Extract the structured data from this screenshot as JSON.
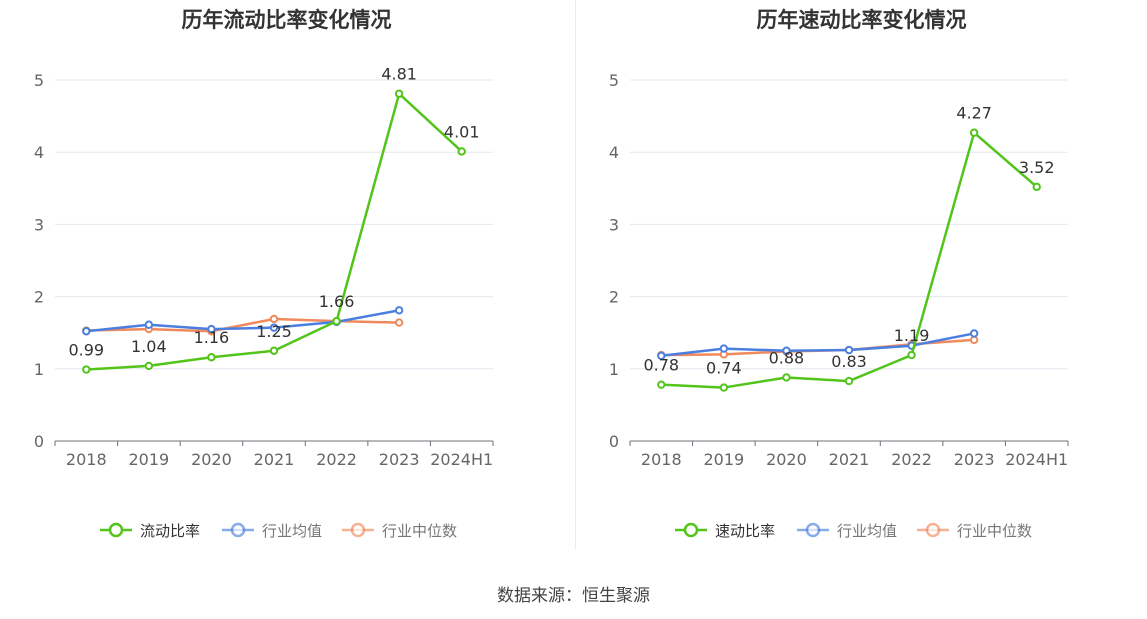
{
  "charts": [
    {
      "title": "历年流动比率变化情况",
      "chart_data": {
        "type": "line",
        "title": "历年流动比率变化情况",
        "categories": [
          "2018",
          "2019",
          "2020",
          "2021",
          "2022",
          "2023",
          "2024H1"
        ],
        "ylim": [
          0,
          5
        ],
        "yticks": [
          0,
          1,
          2,
          3,
          4,
          5
        ],
        "grid": true,
        "legend_position": "bottom",
        "series": [
          {
            "name": "流动比率",
            "color": "#52c41a",
            "labeled": true,
            "values": [
              0.99,
              1.04,
              1.16,
              1.25,
              1.66,
              4.81,
              4.01
            ],
            "labels": [
              "0.99",
              "1.04",
              "1.16",
              "1.25",
              "1.66",
              "4.81",
              "4.01"
            ]
          },
          {
            "name": "行业均值",
            "color": "#4a7fe0",
            "labeled": false,
            "values": [
              1.52,
              1.61,
              1.55,
              1.57,
              1.65,
              1.81,
              null
            ]
          },
          {
            "name": "行业中位数",
            "color": "#f08a5d",
            "labeled": false,
            "values": [
              1.53,
              1.55,
              1.52,
              1.69,
              1.66,
              1.64,
              null
            ]
          }
        ]
      }
    },
    {
      "title": "历年速动比率变化情况",
      "chart_data": {
        "type": "line",
        "title": "历年速动比率变化情况",
        "categories": [
          "2018",
          "2019",
          "2020",
          "2021",
          "2022",
          "2023",
          "2024H1"
        ],
        "ylim": [
          0,
          5
        ],
        "yticks": [
          0,
          1,
          2,
          3,
          4,
          5
        ],
        "grid": true,
        "legend_position": "bottom",
        "series": [
          {
            "name": "速动比率",
            "color": "#52c41a",
            "labeled": true,
            "values": [
              0.78,
              0.74,
              0.88,
              0.83,
              1.19,
              4.27,
              3.52
            ],
            "labels": [
              "0.78",
              "0.74",
              "0.88",
              "0.83",
              "1.19",
              "4.27",
              "3.52"
            ]
          },
          {
            "name": "行业均值",
            "color": "#4a7fe0",
            "labeled": false,
            "values": [
              1.18,
              1.28,
              1.25,
              1.26,
              1.32,
              1.49,
              null
            ]
          },
          {
            "name": "行业中位数",
            "color": "#f08a5d",
            "labeled": false,
            "values": [
              1.19,
              1.2,
              1.24,
              1.26,
              1.34,
              1.4,
              null
            ]
          }
        ]
      }
    }
  ],
  "source": "数据来源：恒生聚源"
}
